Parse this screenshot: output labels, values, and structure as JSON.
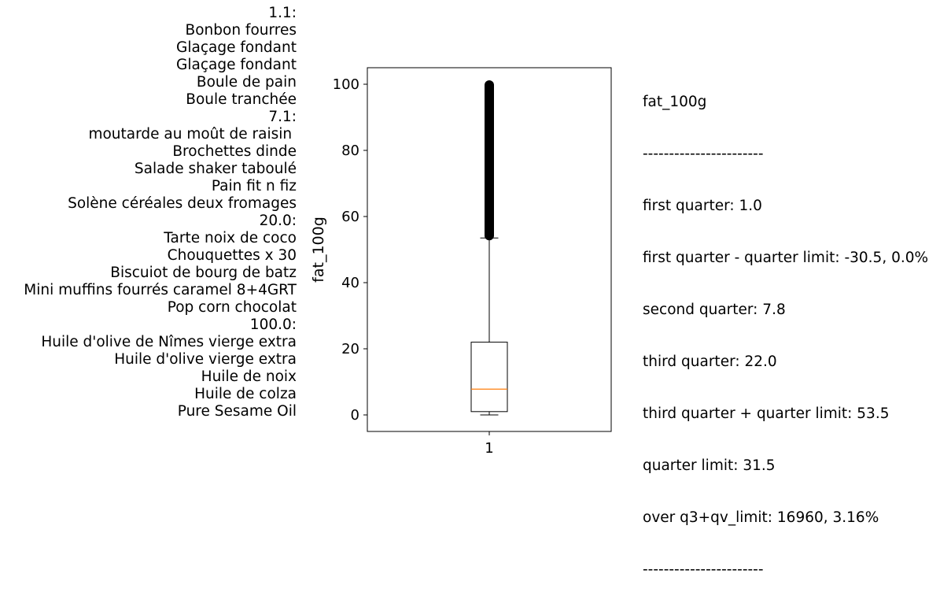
{
  "product_groups": [
    {
      "label": "1.1:",
      "items": [
        "Bonbon fourres",
        "Glaçage fondant",
        "Glaçage fondant",
        "Boule de pain",
        "Boule tranchée"
      ]
    },
    {
      "label": "7.1:",
      "items": [
        "moutarde au moût de raisin ",
        "Brochettes dinde",
        "Salade shaker taboulé",
        "Pain fit n fiz",
        "Solène céréales deux fromages"
      ]
    },
    {
      "label": "20.0:",
      "items": [
        "Tarte noix de coco",
        "Chouquettes x 30",
        "Biscuiot de bourg de batz",
        "Mini muffins fourrés caramel 8+4GRT",
        "Pop corn chocolat"
      ]
    },
    {
      "label": "100.0:",
      "items": [
        "Huile d'olive de Nîmes vierge extra",
        "Huile d'olive vierge extra",
        "Huile de noix",
        "Huile de colza",
        "Pure Sesame Oil"
      ]
    }
  ],
  "stats": {
    "title": "fat_100g",
    "separator": "-----------------------",
    "lines": [
      "first quarter: 1.0",
      "first quarter - quarter limit: -30.5, 0.0%",
      "second quarter: 7.8",
      "third quarter: 22.0",
      "third quarter + quarter limit: 53.5",
      "quarter limit: 31.5",
      "over q3+qv_limit: 16960, 3.16%"
    ]
  },
  "chart_data": {
    "type": "box",
    "ylabel": "fat_100g",
    "categories": [
      "1"
    ],
    "ylim": [
      -5,
      105
    ],
    "yticks": [
      0,
      20,
      40,
      60,
      80,
      100
    ],
    "box": {
      "whisker_low": 0.0,
      "q1": 1.0,
      "median": 7.8,
      "q3": 22.0,
      "whisker_high": 53.5,
      "outliers_range": [
        53.5,
        100.0
      ]
    },
    "colors": {
      "box": "#000000",
      "median": "#ff7f0e"
    }
  }
}
